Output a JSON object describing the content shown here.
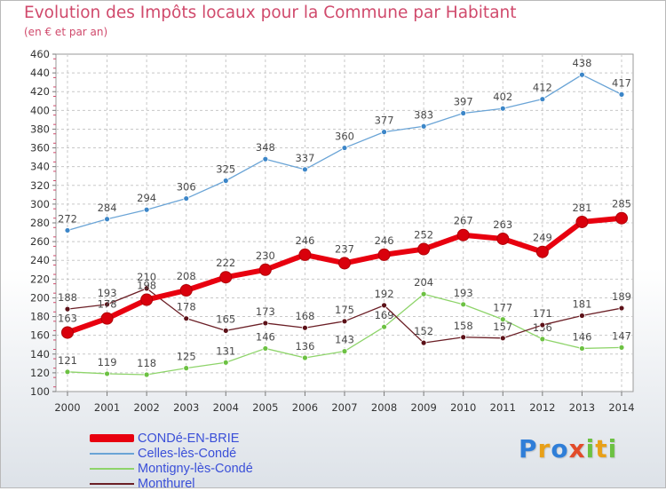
{
  "chart_data": {
    "type": "line",
    "title": "Evolution des Impôts locaux pour la Commune par Habitant",
    "subtitle": "(en € et par an)",
    "xlabel": "",
    "ylabel": "",
    "x": [
      "2000",
      "2001",
      "2002",
      "2003",
      "2004",
      "2005",
      "2006",
      "2007",
      "2008",
      "2009",
      "2010",
      "2011",
      "2012",
      "2013",
      "2014"
    ],
    "ylim": [
      100,
      460
    ],
    "yticks": [
      100,
      120,
      140,
      160,
      180,
      200,
      220,
      240,
      260,
      280,
      300,
      320,
      340,
      360,
      380,
      400,
      420,
      440,
      460
    ],
    "grid": true,
    "legend_position": "bottom-left",
    "series": [
      {
        "name": "CONDé-EN-BRIE",
        "color": "#e8000f",
        "marker_color": "#d9000c",
        "line_width": 6,
        "marker_radius": 6.5,
        "label_side": "auto",
        "values": [
          163,
          178,
          198,
          208,
          222,
          230,
          246,
          237,
          246,
          252,
          267,
          263,
          249,
          281,
          285
        ]
      },
      {
        "name": "Celles-lès-Condé",
        "color": "#6aa4d6",
        "marker_color": "#3c86c8",
        "line_width": 1.3,
        "marker_radius": 3,
        "label_side": "above",
        "values": [
          272,
          284,
          294,
          306,
          325,
          348,
          337,
          360,
          377,
          383,
          397,
          402,
          412,
          438,
          417
        ]
      },
      {
        "name": "Montigny-lès-Condé",
        "color": "#8ed46a",
        "marker_color": "#6cc142",
        "line_width": 1.3,
        "marker_radius": 3,
        "label_side": "above",
        "values": [
          121,
          119,
          118,
          125,
          131,
          146,
          136,
          143,
          169,
          204,
          193,
          177,
          156,
          146,
          147
        ]
      },
      {
        "name": "Monthurel",
        "color": "#6b1f26",
        "marker_color": "#5c1118",
        "line_width": 1.3,
        "marker_radius": 3,
        "label_side": "above",
        "values": [
          188,
          193,
          210,
          178,
          165,
          173,
          168,
          175,
          192,
          152,
          158,
          157,
          171,
          181,
          189
        ]
      }
    ]
  },
  "logo": {
    "letters": [
      {
        "ch": "P",
        "color": "#2f7ed8"
      },
      {
        "ch": "r",
        "color": "#e8a018"
      },
      {
        "ch": "o",
        "color": "#2f7ed8"
      },
      {
        "ch": "x",
        "color": "#e24b2a"
      },
      {
        "ch": "i",
        "color": "#6cc142"
      },
      {
        "ch": "t",
        "color": "#e8a018"
      },
      {
        "ch": "i",
        "color": "#6cc142"
      }
    ]
  }
}
